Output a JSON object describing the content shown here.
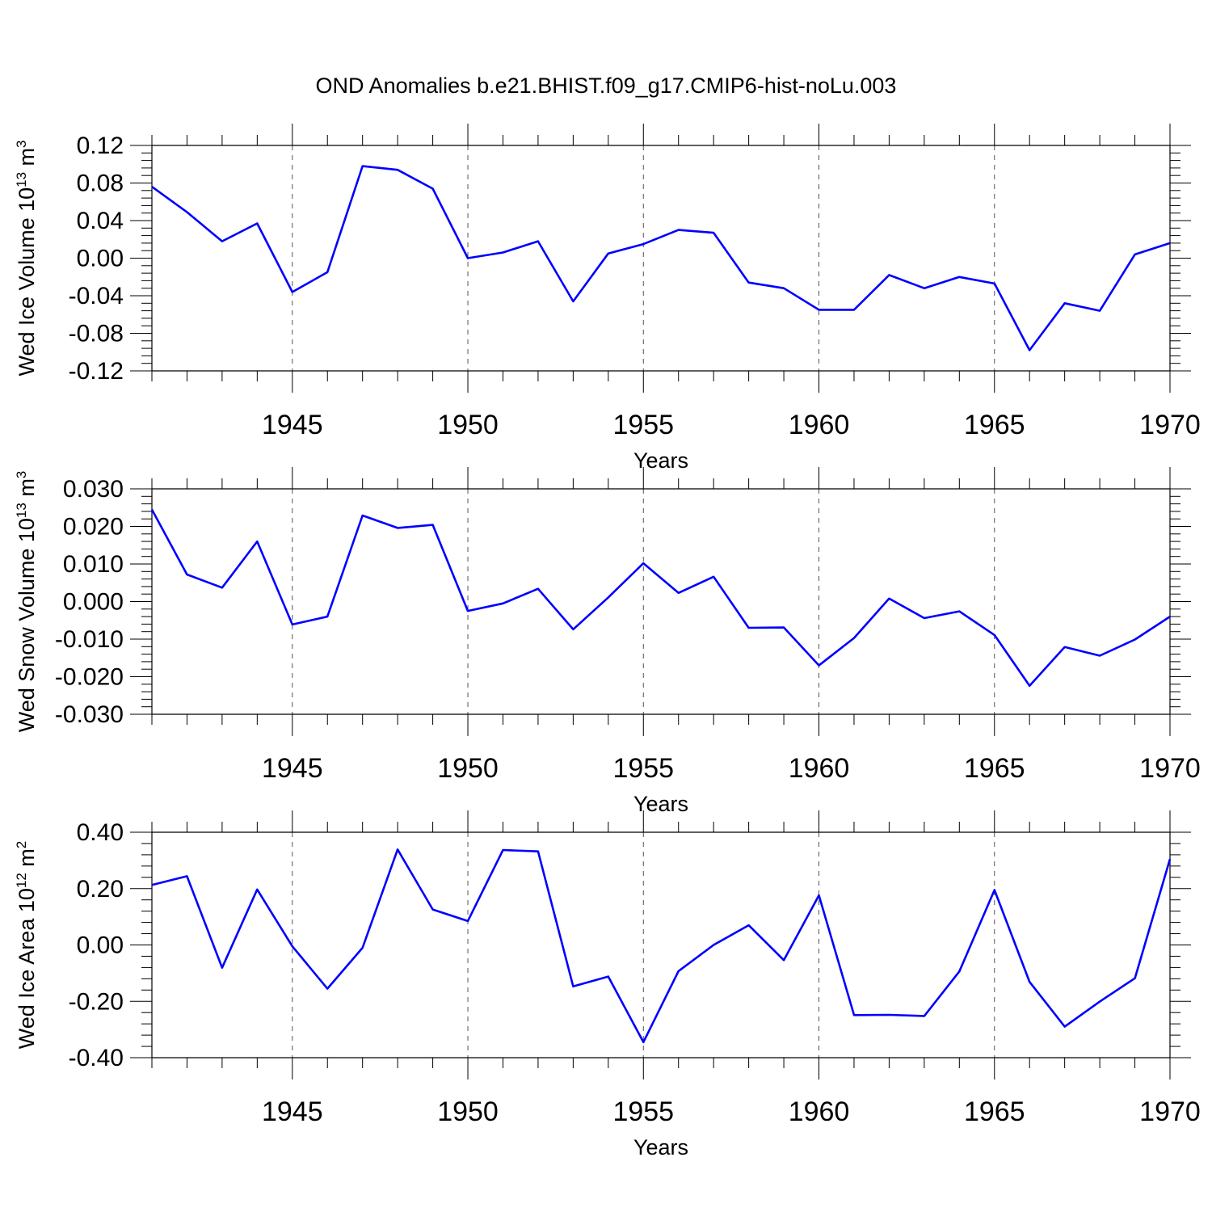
{
  "title": "OND Anomalies b.e21.BHIST.f09_g17.CMIP6-hist-noLu.003",
  "line_color": "#0000ff",
  "chart_data": [
    {
      "type": "line",
      "ylabel": "Wed Ice Volume 10",
      "ylabel_exp": "13",
      "ylabel_unit": " m",
      "ylabel_unit_exp": "3",
      "xlabel": "Years",
      "xlim": [
        1941,
        1970
      ],
      "ylim": [
        -0.12,
        0.12
      ],
      "xticks": [
        "1945",
        "1950",
        "1955",
        "1960",
        "1965",
        "1970"
      ],
      "yticks": [
        "0.12",
        "0.08",
        "0.04",
        "0.00",
        "-0.04",
        "-0.08",
        "-0.12"
      ],
      "grid": "dashed vertical at major x ticks",
      "series": [
        {
          "x": [
            1941,
            1942,
            1943,
            1944,
            1945,
            1946,
            1947,
            1948,
            1949,
            1950,
            1951,
            1952,
            1953,
            1954,
            1955,
            1956,
            1957,
            1958,
            1959,
            1960,
            1961,
            1962,
            1963,
            1964,
            1965,
            1966,
            1967,
            1968,
            1969,
            1970
          ],
          "values": [
            0.076,
            0.049,
            0.018,
            0.037,
            -0.036,
            -0.015,
            0.098,
            0.094,
            0.074,
            0.0,
            0.006,
            0.018,
            -0.046,
            0.005,
            0.015,
            0.03,
            0.027,
            -0.026,
            -0.032,
            -0.055,
            -0.055,
            -0.018,
            -0.032,
            -0.02,
            -0.027,
            -0.098,
            -0.048,
            -0.056,
            0.004,
            0.016
          ]
        }
      ]
    },
    {
      "type": "line",
      "ylabel": "Wed Snow Volume 10",
      "ylabel_exp": "13",
      "ylabel_unit": " m",
      "ylabel_unit_exp": "3",
      "xlabel": "Years",
      "xlim": [
        1941,
        1970
      ],
      "ylim": [
        -0.03,
        0.03
      ],
      "xticks": [
        "1945",
        "1950",
        "1955",
        "1960",
        "1965",
        "1970"
      ],
      "yticks": [
        "0.030",
        "0.020",
        "0.010",
        "0.000",
        "-0.010",
        "-0.020",
        "-0.030"
      ],
      "grid": "dashed vertical at major x ticks",
      "series": [
        {
          "x": [
            1941,
            1942,
            1943,
            1944,
            1945,
            1946,
            1947,
            1948,
            1949,
            1950,
            1951,
            1952,
            1953,
            1954,
            1955,
            1956,
            1957,
            1958,
            1959,
            1960,
            1961,
            1962,
            1963,
            1964,
            1965,
            1966,
            1967,
            1968,
            1969,
            1970
          ],
          "values": [
            0.0245,
            0.0072,
            0.0037,
            0.016,
            -0.0061,
            -0.004,
            0.0229,
            0.0196,
            0.0204,
            -0.0025,
            -0.0005,
            0.0034,
            -0.0074,
            0.0011,
            0.0102,
            0.0023,
            0.0066,
            -0.007,
            -0.0069,
            -0.017,
            -0.0097,
            0.0008,
            -0.0044,
            -0.0026,
            -0.0089,
            -0.0224,
            -0.0121,
            -0.0144,
            -0.0101,
            -0.004
          ]
        }
      ]
    },
    {
      "type": "line",
      "ylabel": "Wed Ice Area 10",
      "ylabel_exp": "12",
      "ylabel_unit": " m",
      "ylabel_unit_exp": "2",
      "xlabel": "Years",
      "xlim": [
        1941,
        1970
      ],
      "ylim": [
        -0.4,
        0.4
      ],
      "xticks": [
        "1945",
        "1950",
        "1955",
        "1960",
        "1965",
        "1970"
      ],
      "yticks": [
        "0.40",
        "0.20",
        "0.00",
        "-0.20",
        "-0.40"
      ],
      "grid": "dashed vertical at major x ticks",
      "series": [
        {
          "x": [
            1941,
            1942,
            1943,
            1944,
            1945,
            1946,
            1947,
            1948,
            1949,
            1950,
            1951,
            1952,
            1953,
            1954,
            1955,
            1956,
            1957,
            1958,
            1959,
            1960,
            1961,
            1962,
            1963,
            1964,
            1965,
            1966,
            1967,
            1968,
            1969,
            1970
          ],
          "values": [
            0.213,
            0.244,
            -0.081,
            0.197,
            -0.005,
            -0.155,
            -0.01,
            0.339,
            0.126,
            0.085,
            0.337,
            0.332,
            -0.147,
            -0.112,
            -0.345,
            -0.093,
            0.0,
            0.07,
            -0.054,
            0.176,
            -0.249,
            -0.248,
            -0.252,
            -0.094,
            0.195,
            -0.131,
            -0.29,
            -0.201,
            -0.118,
            0.305
          ]
        }
      ]
    }
  ]
}
